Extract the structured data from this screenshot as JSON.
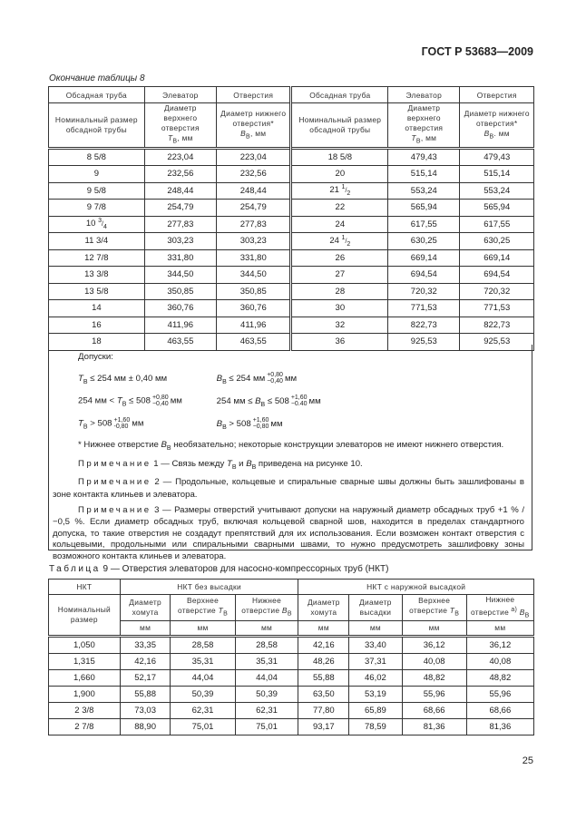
{
  "header": {
    "standard": "ГОСТ Р 53683—2009"
  },
  "table8": {
    "caption": "Окончание таблицы 8",
    "group_headers": [
      "Обсадная труба",
      "Элеватор",
      "Отверстия",
      "Обсадная труба",
      "Элеватор",
      "Отверстия"
    ],
    "sub_headers": [
      {
        "text": "Номинальный размер обсадной трубы"
      },
      {
        "text": "Диаметр верхнего отверстия",
        "sym": "T",
        "idx": "В",
        "unit": ", мм"
      },
      {
        "text": "Диаметр нижнего отверстия*",
        "sym": "B",
        "idx": "В",
        "unit": ", мм"
      },
      {
        "text": "Номинальный размер обсадной трубы"
      },
      {
        "text": "Диаметр верхнего отверстия",
        "sym": "T",
        "idx": "В",
        "unit": ", мм"
      },
      {
        "text": "Диаметр нижнего отверстия*",
        "sym": "B",
        "idx": "В",
        "unit": ". мм"
      }
    ],
    "rows": [
      [
        [
          "8 5/8"
        ],
        "223,04",
        "223,04",
        [
          "18 5/8"
        ],
        "479,43",
        "479,43"
      ],
      [
        [
          "9"
        ],
        "232,56",
        "232,56",
        [
          "20"
        ],
        "515,14",
        "515,14"
      ],
      [
        [
          "9 5/8"
        ],
        "248,44",
        "248,44",
        [
          "21",
          "1",
          "2"
        ],
        "553,24",
        "553,24"
      ],
      [
        [
          "9 7/8"
        ],
        "254,79",
        "254,79",
        [
          "22"
        ],
        "565,94",
        "565,94"
      ],
      [
        [
          "10",
          "3",
          "4"
        ],
        "277,83",
        "277,83",
        [
          "24"
        ],
        "617,55",
        "617,55"
      ],
      [
        [
          "11 3/4"
        ],
        "303,23",
        "303,23",
        [
          "24",
          "1",
          "2"
        ],
        "630,25",
        "630,25"
      ],
      [
        [
          "12 7/8"
        ],
        "331,80",
        "331,80",
        [
          "26"
        ],
        "669,14",
        "669,14"
      ],
      [
        [
          "13 3/8"
        ],
        "344,50",
        "344,50",
        [
          "27"
        ],
        "694,54",
        "694,54"
      ],
      [
        [
          "13 5/8"
        ],
        "350,85",
        "350,85",
        [
          "28"
        ],
        "720,32",
        "720,32"
      ],
      [
        [
          "14"
        ],
        "360,76",
        "360,76",
        [
          "30"
        ],
        "771,53",
        "771,53"
      ],
      [
        [
          "16"
        ],
        "411,96",
        "411,96",
        [
          "32"
        ],
        "822,73",
        "822,73"
      ],
      [
        [
          "18"
        ],
        "463,55",
        "463,55",
        [
          "36"
        ],
        "925,53",
        "925,53"
      ]
    ],
    "tolerances": {
      "title": "Допуски:",
      "t1": " ≤ 254 мм ± 0,40 мм",
      "b1": " ≤ 254 мм",
      "b1_up": "+0,80",
      "b1_lo": "−0,40",
      "b1_unit": "мм",
      "t2_pre": "254 мм < ",
      "t2": " ≤ 508",
      "t2_up": "+0,80",
      "t2_lo": "−0,40",
      "t2_unit": "мм",
      "b2_pre": "254 мм ≤ ",
      "b2": " ≤ 508",
      "b2_up": "+1,60",
      "b2_lo": "−0.40",
      "b2_unit": "мм",
      "t3": " > 508",
      "t3_up": "+1,60",
      "t3_lo": "-0,80",
      "t3_unit": "мм",
      "b3": " > 508",
      "b3_up": "+1,60",
      "b3_lo": "−0,80",
      "b3_unit": "мм"
    },
    "footnote_a": "* Нижнее отверстие ",
    "footnote_b": " необязательно; некоторые конструкции элеваторов не имеют нижнего отверстия.",
    "note_label": "Примечание",
    "note1_a": " 1 — Связь между ",
    "note1_and": " и ",
    "note1_b": " приведена на рисунке 10.",
    "note2": " 2 — Продольные, кольцевые и спиральные сварные швы должны быть зашлифованы в зоне контакта клиньев и элеватора.",
    "note3": " 3 — Размеры отверстий учитывают допуски на наружный диаметр обсадных труб +1 % / −0,5 %. Если диаметр обсадных труб, включая кольцевой сварной шов, находится в пределах стандартного допуска, то такие отверстия не создадут препятствий для их использования. Если возможен контакт отверстия с кольцевыми, продольными или спиральными сварными швами, то нужно предусмотреть зашлифовку зоны возможного контакта клиньев и элеватора."
  },
  "table9": {
    "caption_label": "Таблица",
    "caption": " 9 — Отверстия элеваторов для насосно-компрессорных труб (НКТ)",
    "h1": [
      "НКТ",
      "НКТ без высадки",
      "НКТ с наружной высадкой"
    ],
    "h2": [
      "Номинальный размер",
      "Диаметр хомута",
      "Верхнее отверстие",
      "Нижнее отверстие",
      "Диаметр хомута",
      "Диаметр высадки",
      "Верхнее отверстие",
      "Нижнее отверстие"
    ],
    "h2_sym": [
      "",
      "",
      "T",
      "B",
      "",
      "",
      "T",
      "B"
    ],
    "idx": "В",
    "footnote_mark": "а)",
    "unit": "мм",
    "rows": [
      [
        "1,050",
        "33,35",
        "28,58",
        "28,58",
        "42,16",
        "33,40",
        "36,12",
        "36,12"
      ],
      [
        "1,315",
        "42,16",
        "35,31",
        "35,31",
        "48,26",
        "37,31",
        "40,08",
        "40,08"
      ],
      [
        "1,660",
        "52,17",
        "44,04",
        "44,04",
        "55,88",
        "46,02",
        "48,82",
        "48,82"
      ],
      [
        "1,900",
        "55,88",
        "50,39",
        "50,39",
        "63,50",
        "53,19",
        "55,96",
        "55,96"
      ],
      [
        "2 3/8",
        "73,03",
        "62,31",
        "62,31",
        "77,80",
        "65,89",
        "68,66",
        "68,66"
      ],
      [
        "2 7/8",
        "88,90",
        "75,01",
        "75,01",
        "93,17",
        "78,59",
        "81,36",
        "81,36"
      ]
    ]
  },
  "page_number": "25"
}
